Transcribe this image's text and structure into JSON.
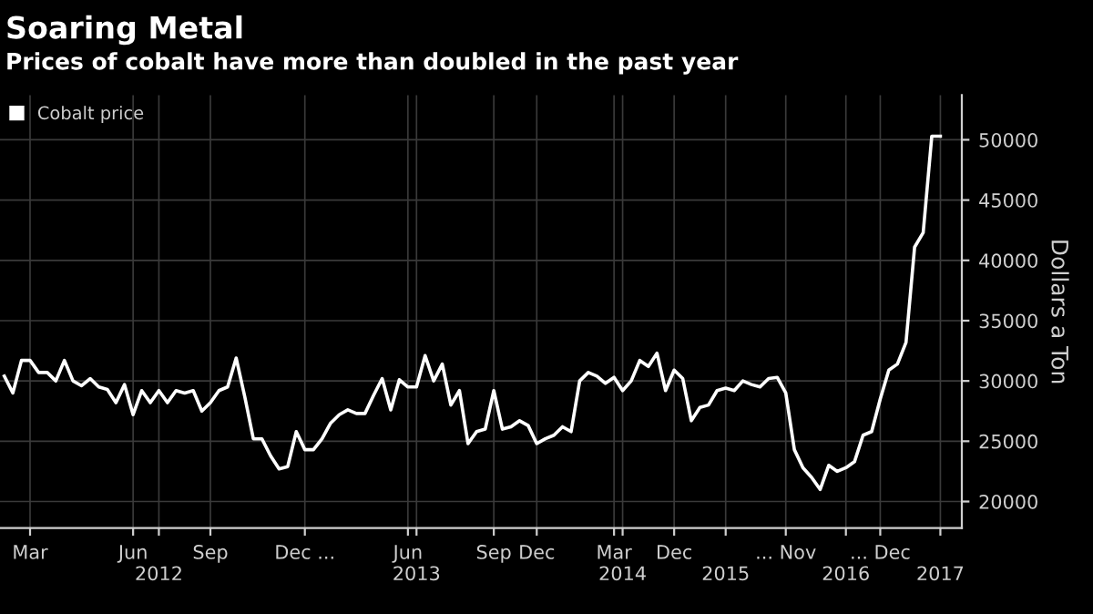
{
  "chart_data": {
    "type": "line",
    "title": "Soaring Metal",
    "subtitle": "Prices of cobalt have more than doubled in the past year",
    "ylabel": "Dollars a Ton",
    "categories": [
      null,
      null,
      null,
      "Mar",
      null,
      null,
      null,
      null,
      null,
      null,
      null,
      null,
      null,
      null,
      null,
      "Jun",
      null,
      null,
      "\n2012",
      null,
      null,
      null,
      null,
      null,
      "Sep",
      null,
      null,
      null,
      null,
      null,
      null,
      null,
      null,
      null,
      null,
      "Dec ...",
      null,
      null,
      null,
      null,
      null,
      null,
      null,
      null,
      null,
      null,
      null,
      "Jun",
      "\n2013",
      null,
      null,
      null,
      null,
      null,
      null,
      null,
      null,
      "Sep",
      null,
      null,
      null,
      null,
      "Dec",
      null,
      null,
      null,
      null,
      null,
      null,
      null,
      null,
      "Mar",
      "\n2014",
      null,
      null,
      null,
      null,
      null,
      "Dec",
      null,
      null,
      null,
      null,
      null,
      "\n2015",
      null,
      null,
      null,
      null,
      null,
      null,
      "... Nov",
      null,
      null,
      null,
      null,
      null,
      null,
      "\n2016",
      null,
      null,
      null,
      "... Dec",
      null,
      null,
      null,
      null,
      null,
      null,
      "\n2017"
    ],
    "series": [
      {
        "name": "Cobalt price",
        "color": "#ffffff",
        "values": [
          30400,
          29000,
          31700,
          31700,
          30700,
          30700,
          30000,
          31700,
          30000,
          29600,
          30200,
          29500,
          29300,
          28200,
          29700,
          27200,
          29200,
          28200,
          29200,
          28200,
          29200,
          29000,
          29200,
          27500,
          28200,
          29200,
          29500,
          31900,
          28700,
          25200,
          25200,
          23800,
          22700,
          22900,
          25800,
          24300,
          24300,
          25200,
          26500,
          27200,
          27600,
          27300,
          27300,
          28800,
          30200,
          27600,
          30100,
          29500,
          29500,
          32100,
          30000,
          31400,
          28000,
          29200,
          24800,
          25800,
          26000,
          29200,
          26000,
          26200,
          26700,
          26300,
          24800,
          25200,
          25500,
          26200,
          25800,
          30000,
          30700,
          30400,
          29800,
          30300,
          29200,
          30000,
          31700,
          31200,
          32300,
          29200,
          30900,
          30200,
          26700,
          27800,
          28000,
          29200,
          29400,
          29200,
          30000,
          29700,
          29500,
          30200,
          30300,
          29000,
          24300,
          22800,
          22000,
          21000,
          23000,
          22500,
          22800,
          23300,
          25500,
          25800,
          28500,
          30900,
          31400,
          33200,
          41100,
          42300,
          50300,
          50300
        ]
      }
    ],
    "ylim": [
      17800,
      53700
    ],
    "yticks": [
      20000,
      25000,
      30000,
      35000,
      40000,
      45000,
      50000
    ],
    "grid": true,
    "legend": "top left",
    "marker": "none",
    "line_style": "solid"
  }
}
